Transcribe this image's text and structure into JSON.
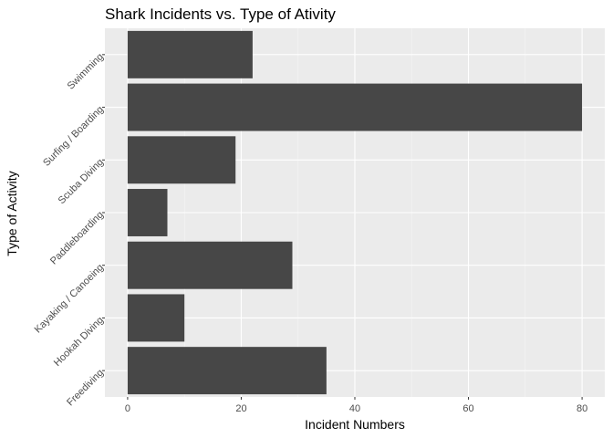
{
  "colors": {
    "panel_background": "#EBEBEB",
    "grid_major": "#FFFFFF",
    "grid_minor": "#F4F4F4",
    "bar_fill": "#474747",
    "tick_mark": "#333333"
  },
  "chart_data": {
    "type": "bar",
    "orientation": "horizontal",
    "title": "Shark Incidents vs. Type of Ativity",
    "xlabel": "Incident Numbers",
    "ylabel": "Type of Activity",
    "categories": [
      "Freediving",
      "Hookah Diving",
      "Kayaking / Canoeing",
      "Paddleboarding",
      "Scuba Diving",
      "Surfing / Boarding",
      "Swimming"
    ],
    "values": [
      35,
      10,
      29,
      7,
      19,
      80,
      22
    ],
    "x_ticks": [
      0,
      20,
      40,
      60,
      80
    ],
    "xlim": [
      -4,
      84
    ],
    "grid": true,
    "legend": "none"
  }
}
